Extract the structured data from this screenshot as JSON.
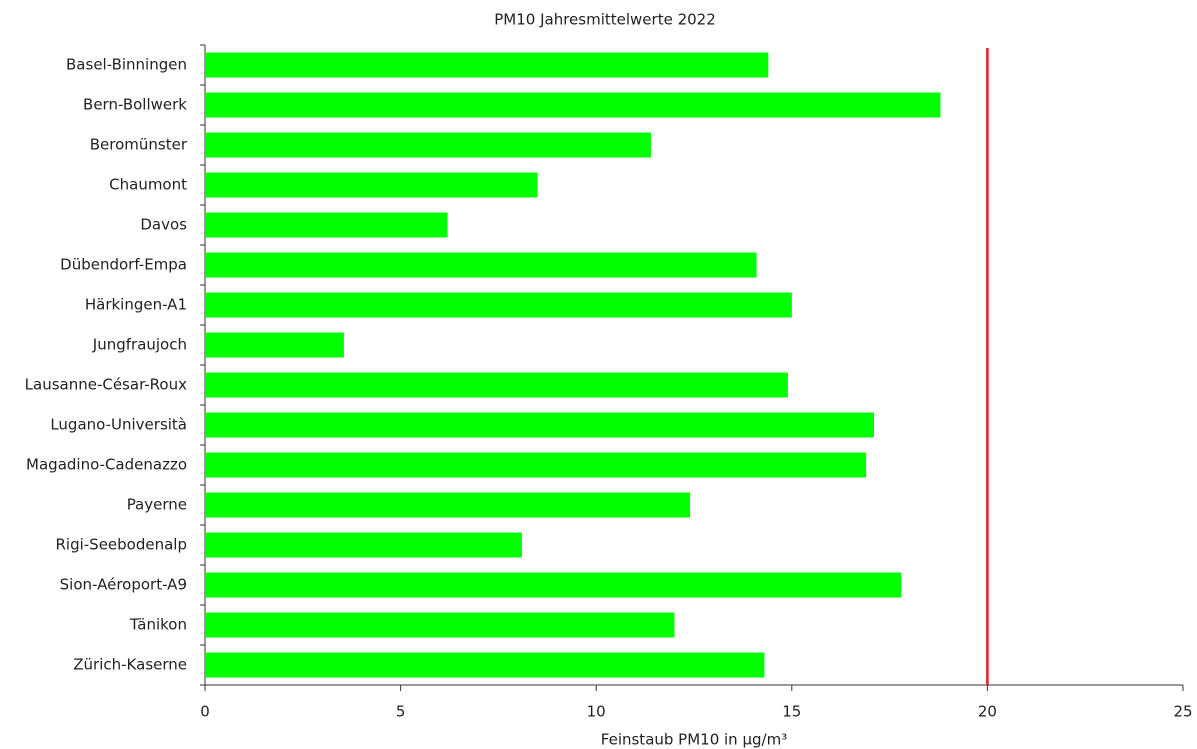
{
  "chart_data": {
    "type": "hbar",
    "title": "PM10  Jahresmittelwerte 2022",
    "x_label": "Feinstaub PM10 in µg/m³",
    "categories": [
      "Basel-Binningen",
      "Bern-Bollwerk",
      "Beromünster",
      "Chaumont",
      "Davos",
      "Dübendorf-Empa",
      "Härkingen-A1",
      "Jungfraujoch",
      "Lausanne-César-Roux",
      "Lugano-Università",
      "Magadino-Cadenazzo",
      "Payerne",
      "Rigi-Seebodenalp",
      "Sion-Aéroport-A9",
      "Tänikon",
      "Zürich-Kaserne"
    ],
    "values": [
      14.4,
      18.8,
      11.4,
      8.5,
      6.2,
      14.1,
      15.0,
      3.55,
      14.9,
      17.1,
      16.9,
      12.4,
      8.1,
      17.8,
      12.0,
      14.3
    ],
    "color": "#00ff00",
    "xlim": [
      0,
      25
    ],
    "xticks": [
      0,
      5,
      10,
      15,
      20,
      25
    ],
    "threshold": 20,
    "threshold_color": "#e02020"
  }
}
